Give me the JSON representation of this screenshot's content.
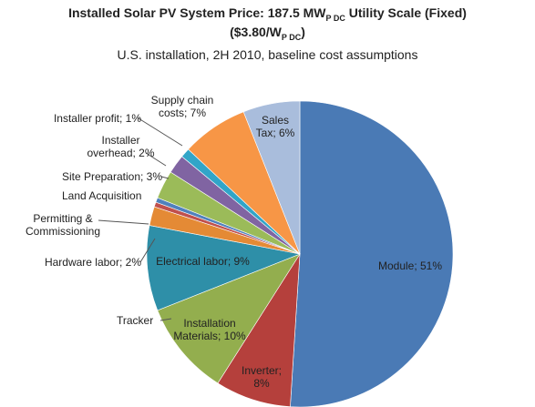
{
  "chart_data": {
    "type": "pie",
    "title": [
      "Installed Solar PV System Price: 187.5 MW",
      "P DC",
      " Utility Scale (Fixed)"
    ],
    "title_line2": [
      "($3.80/W",
      "P DC",
      ")"
    ],
    "subtitle": "U.S. installation, 2H 2010, baseline cost assumptions",
    "categories": [
      "Module; 51%",
      "Inverter; 8%",
      "Installation Materials; 10%",
      "Tracker",
      "Electrical labor; 9%",
      "Hardware labor; 2%",
      "Permitting & Commissioning",
      "Land Acquisition",
      "Site Preparation; 3%",
      "Installer overhead; 2%",
      "Installer profit; 1%",
      "Supply chain costs; 7%",
      "Sales Tax; 6%"
    ],
    "values": [
      51,
      8,
      10,
      0,
      9,
      2,
      0.5,
      0.5,
      3,
      2,
      1,
      7,
      6
    ],
    "colors": [
      "#4a7ab5",
      "#b5403c",
      "#93ae4e",
      "#6d5a8c",
      "#2e8fa8",
      "#e48a35",
      "#c0504d",
      "#4f81bd",
      "#9bbb59",
      "#8064a2",
      "#31a5c8",
      "#f79646",
      "#a9bddc"
    ]
  }
}
